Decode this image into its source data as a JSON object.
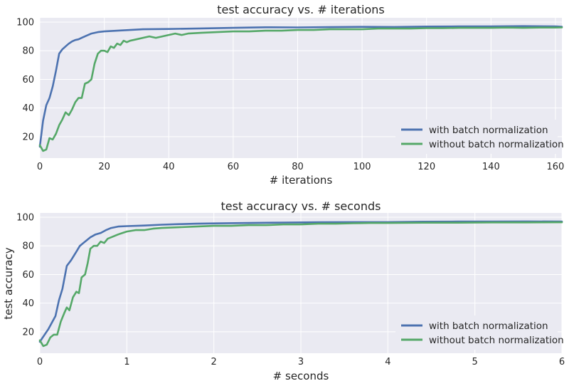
{
  "chart_data": [
    {
      "type": "line",
      "title": "test accuracy vs. # iterations",
      "xlabel": "# iterations",
      "ylabel": "",
      "xlim": [
        0,
        162
      ],
      "ylim": [
        5,
        103
      ],
      "xticks": [
        0,
        20,
        40,
        60,
        80,
        100,
        120,
        140,
        160
      ],
      "yticks": [
        20,
        40,
        60,
        80,
        100
      ],
      "grid": true,
      "legend_position": "lower-right",
      "series": [
        {
          "name": "with batch normalization",
          "color": "#4c72b0",
          "points": [
            [
              0,
              13
            ],
            [
              1,
              31
            ],
            [
              2,
              42
            ],
            [
              3,
              47
            ],
            [
              4,
              55
            ],
            [
              5,
              66
            ],
            [
              6,
              78
            ],
            [
              7,
              81
            ],
            [
              8,
              83
            ],
            [
              9,
              85
            ],
            [
              10,
              86.5
            ],
            [
              11,
              87.5
            ],
            [
              12,
              88
            ],
            [
              13,
              89
            ],
            [
              14,
              90
            ],
            [
              15,
              91
            ],
            [
              16,
              92
            ],
            [
              18,
              93
            ],
            [
              20,
              93.5
            ],
            [
              24,
              94
            ],
            [
              28,
              94.5
            ],
            [
              32,
              95
            ],
            [
              40,
              95.2
            ],
            [
              50,
              95.6
            ],
            [
              60,
              96
            ],
            [
              70,
              96.4
            ],
            [
              80,
              96.3
            ],
            [
              90,
              96.5
            ],
            [
              100,
              96.7
            ],
            [
              110,
              96.6
            ],
            [
              120,
              96.9
            ],
            [
              130,
              97
            ],
            [
              140,
              97
            ],
            [
              150,
              97.2
            ],
            [
              160,
              97
            ],
            [
              162,
              96.8
            ]
          ]
        },
        {
          "name": "without batch normalization",
          "color": "#55a868",
          "points": [
            [
              0,
              14
            ],
            [
              1,
              10
            ],
            [
              2,
              11
            ],
            [
              3,
              19
            ],
            [
              4,
              18
            ],
            [
              5,
              22
            ],
            [
              6,
              28
            ],
            [
              7,
              32
            ],
            [
              8,
              37
            ],
            [
              9,
              35
            ],
            [
              10,
              39
            ],
            [
              11,
              44
            ],
            [
              12,
              47
            ],
            [
              13,
              47
            ],
            [
              14,
              57
            ],
            [
              15,
              58
            ],
            [
              16,
              60
            ],
            [
              17,
              71
            ],
            [
              18,
              78
            ],
            [
              19,
              80
            ],
            [
              20,
              80
            ],
            [
              21,
              79
            ],
            [
              22,
              83
            ],
            [
              23,
              82
            ],
            [
              24,
              85
            ],
            [
              25,
              84
            ],
            [
              26,
              87
            ],
            [
              27,
              86
            ],
            [
              28,
              87
            ],
            [
              30,
              88
            ],
            [
              32,
              89
            ],
            [
              34,
              90
            ],
            [
              36,
              89
            ],
            [
              38,
              90
            ],
            [
              40,
              91
            ],
            [
              42,
              92
            ],
            [
              44,
              91
            ],
            [
              46,
              92
            ],
            [
              50,
              92.5
            ],
            [
              55,
              93
            ],
            [
              60,
              93.5
            ],
            [
              65,
              93.5
            ],
            [
              70,
              94
            ],
            [
              75,
              94
            ],
            [
              80,
              94.5
            ],
            [
              85,
              94.5
            ],
            [
              90,
              95
            ],
            [
              95,
              95
            ],
            [
              100,
              95
            ],
            [
              105,
              95.5
            ],
            [
              110,
              95.5
            ],
            [
              115,
              95.5
            ],
            [
              120,
              95.8
            ],
            [
              125,
              95.8
            ],
            [
              130,
              96
            ],
            [
              135,
              96
            ],
            [
              140,
              96
            ],
            [
              145,
              96.2
            ],
            [
              150,
              96
            ],
            [
              155,
              96.2
            ],
            [
              160,
              96.2
            ],
            [
              162,
              96.3
            ]
          ]
        }
      ]
    },
    {
      "type": "line",
      "title": "test accuracy vs. # seconds",
      "xlabel": "# seconds",
      "ylabel": "test accuracy",
      "xlim": [
        0,
        6
      ],
      "ylim": [
        5,
        103
      ],
      "xticks": [
        0,
        1,
        2,
        3,
        4,
        5,
        6
      ],
      "yticks": [
        20,
        40,
        60,
        80,
        100
      ],
      "grid": true,
      "legend_position": "lower-right",
      "series": [
        {
          "name": "with batch normalization",
          "color": "#4c72b0",
          "points": [
            [
              0,
              13
            ],
            [
              0.1,
              22
            ],
            [
              0.18,
              31
            ],
            [
              0.22,
              42
            ],
            [
              0.26,
              50
            ],
            [
              0.31,
              66
            ],
            [
              0.36,
              70
            ],
            [
              0.42,
              76
            ],
            [
              0.46,
              80
            ],
            [
              0.52,
              83
            ],
            [
              0.58,
              86
            ],
            [
              0.64,
              88
            ],
            [
              0.7,
              89
            ],
            [
              0.76,
              91
            ],
            [
              0.82,
              92.5
            ],
            [
              0.9,
              93.5
            ],
            [
              1.0,
              93.8
            ],
            [
              1.2,
              94.2
            ],
            [
              1.4,
              94.8
            ],
            [
              1.6,
              95.2
            ],
            [
              1.8,
              95.5
            ],
            [
              2.0,
              95.7
            ],
            [
              2.4,
              96
            ],
            [
              2.8,
              96.3
            ],
            [
              3.2,
              96.5
            ],
            [
              3.6,
              96.6
            ],
            [
              4.0,
              96.6
            ],
            [
              4.4,
              96.9
            ],
            [
              4.8,
              97
            ],
            [
              5.2,
              97
            ],
            [
              5.6,
              97.1
            ],
            [
              6.0,
              97
            ]
          ]
        },
        {
          "name": "without batch normalization",
          "color": "#55a868",
          "points": [
            [
              0,
              14
            ],
            [
              0.04,
              10
            ],
            [
              0.08,
              11
            ],
            [
              0.12,
              16
            ],
            [
              0.16,
              18
            ],
            [
              0.2,
              18
            ],
            [
              0.24,
              27
            ],
            [
              0.28,
              33
            ],
            [
              0.31,
              37
            ],
            [
              0.34,
              35
            ],
            [
              0.38,
              44
            ],
            [
              0.42,
              48
            ],
            [
              0.45,
              47
            ],
            [
              0.48,
              58
            ],
            [
              0.52,
              60
            ],
            [
              0.55,
              68
            ],
            [
              0.58,
              78
            ],
            [
              0.62,
              80
            ],
            [
              0.66,
              80
            ],
            [
              0.7,
              83
            ],
            [
              0.74,
              82
            ],
            [
              0.78,
              85
            ],
            [
              0.82,
              86
            ],
            [
              0.86,
              87
            ],
            [
              0.9,
              88
            ],
            [
              0.95,
              89
            ],
            [
              1.0,
              90
            ],
            [
              1.1,
              91
            ],
            [
              1.2,
              91
            ],
            [
              1.3,
              92
            ],
            [
              1.4,
              92.5
            ],
            [
              1.6,
              93
            ],
            [
              1.8,
              93.5
            ],
            [
              2.0,
              94
            ],
            [
              2.2,
              94
            ],
            [
              2.4,
              94.5
            ],
            [
              2.6,
              94.5
            ],
            [
              2.8,
              95
            ],
            [
              3.0,
              95
            ],
            [
              3.2,
              95.5
            ],
            [
              3.4,
              95.5
            ],
            [
              3.6,
              95.8
            ],
            [
              3.8,
              96
            ],
            [
              4.0,
              96
            ],
            [
              4.4,
              96.2
            ],
            [
              4.8,
              96.2
            ],
            [
              5.2,
              96.4
            ],
            [
              5.6,
              96.4
            ],
            [
              6.0,
              96.5
            ]
          ]
        }
      ]
    }
  ]
}
